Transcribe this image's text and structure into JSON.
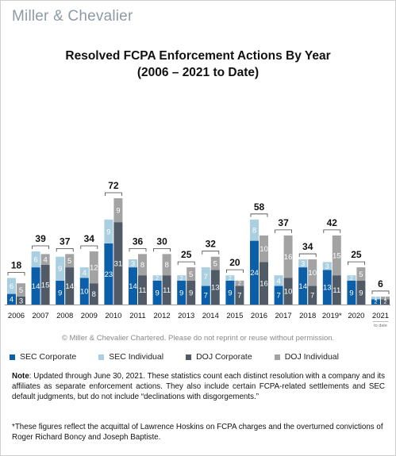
{
  "brand": "Miller & Chevalier",
  "title_line1": "Resolved FCPA Enforcement Actions By Year",
  "title_line2": "(2006 – 2021 to Date)",
  "copyright": "© Miller & Chevalier Chartered. Please do not reprint or reuse without permission.",
  "note_label": "Note",
  "note_text": ": Updated through June 30, 2021. These statistics count each distinct resolution with a company and its affiliates as separate enforcement actions. They also include certain FCPA-related settlements and SEC default judgments, but do not include “declinations with disgorgements.”",
  "footnote": "*These figures reflect the acquittal of Lawrence Hoskins on FCPA charges and the overturned convictions of Roger Richard Boncy and Joseph Baptiste.",
  "colors": {
    "sec_corporate": "#0b5fa8",
    "sec_individual": "#a9cfe0",
    "doj_corporate": "#515b68",
    "doj_individual": "#a3a3a3",
    "brand_gray": "#8e9aa6"
  },
  "chart_data": {
    "type": "bar",
    "stacked": true,
    "title": "Resolved FCPA Enforcement Actions By Year",
    "subtitle": "(2006 – 2021 to Date)",
    "categories": [
      "2006",
      "2007",
      "2008",
      "2009",
      "2010",
      "2011",
      "2012",
      "2013",
      "2014",
      "2015",
      "2016",
      "2017",
      "2018",
      "2019*",
      "2020",
      "2021"
    ],
    "category_sublabels": [
      "",
      "",
      "",
      "",
      "",
      "",
      "",
      "",
      "",
      "",
      "",
      "",
      "",
      "",
      "",
      "to date"
    ],
    "totals": [
      18,
      39,
      37,
      34,
      72,
      36,
      30,
      25,
      32,
      20,
      58,
      37,
      34,
      42,
      25,
      6
    ],
    "groups": [
      {
        "name": "SEC",
        "series": [
          {
            "name": "SEC Corporate",
            "color_key": "sec_corporate",
            "values": [
              4,
              14,
              9,
              10,
              23,
              14,
              9,
              9,
              7,
              9,
              24,
              7,
              14,
              13,
              9,
              2
            ]
          },
          {
            "name": "SEC Individual",
            "color_key": "sec_individual",
            "values": [
              6,
              6,
              9,
              4,
              9,
              3,
              2,
              2,
              7,
              2,
              8,
              4,
              3,
              3,
              2,
              1
            ]
          }
        ]
      },
      {
        "name": "DOJ",
        "series": [
          {
            "name": "DOJ Corporate",
            "color_key": "doj_corporate",
            "values": [
              3,
              15,
              14,
              8,
              31,
              11,
              11,
              9,
              13,
              7,
              16,
              10,
              7,
              11,
              9,
              2
            ]
          },
          {
            "name": "DOJ Individual",
            "color_key": "doj_individual",
            "values": [
              5,
              4,
              5,
              12,
              9,
              8,
              8,
              5,
              5,
              2,
              10,
              16,
              10,
              15,
              5,
              1
            ]
          }
        ]
      }
    ],
    "legend": [
      "SEC Corporate",
      "SEC Individual",
      "DOJ Corporate",
      "DOJ Individual"
    ],
    "legend_position": "bottom",
    "ylim": [
      0,
      80
    ],
    "grid": false
  }
}
